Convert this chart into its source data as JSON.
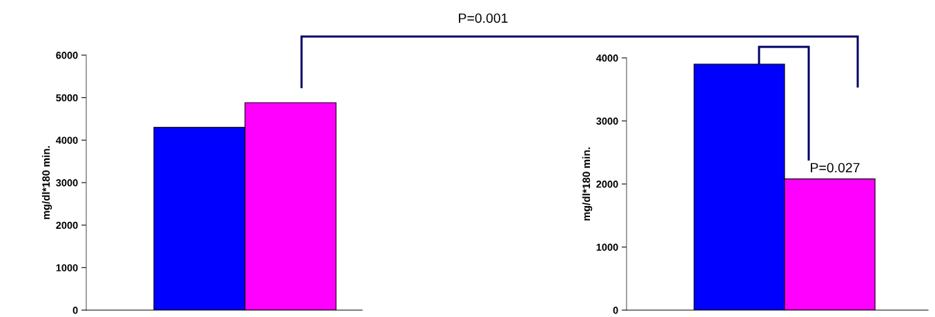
{
  "chart_data": [
    {
      "type": "bar",
      "ylabel": "mg/dl*180 min.",
      "categories": [
        null
      ],
      "series": [
        {
          "color": "#0000ff",
          "values": [
            4300
          ]
        },
        {
          "color": "#ff00ff",
          "values": [
            4880
          ]
        }
      ],
      "ylim": [
        0,
        6000
      ],
      "yticks": [
        0,
        1000,
        2000,
        3000,
        4000,
        5000,
        6000
      ],
      "grid": false,
      "legend": false,
      "annotations": [
        "P=0.001"
      ]
    },
    {
      "type": "bar",
      "ylabel": "mg/dl*180 min.",
      "categories": [
        null
      ],
      "series": [
        {
          "color": "#0000ff",
          "values": [
            3900
          ]
        },
        {
          "color": "#ff00ff",
          "values": [
            2080
          ]
        }
      ],
      "ylim": [
        0,
        4000
      ],
      "yticks": [
        0,
        1000,
        2000,
        3000,
        4000
      ],
      "grid": false,
      "legend": false,
      "annotations": [
        "P=0.027"
      ]
    }
  ]
}
